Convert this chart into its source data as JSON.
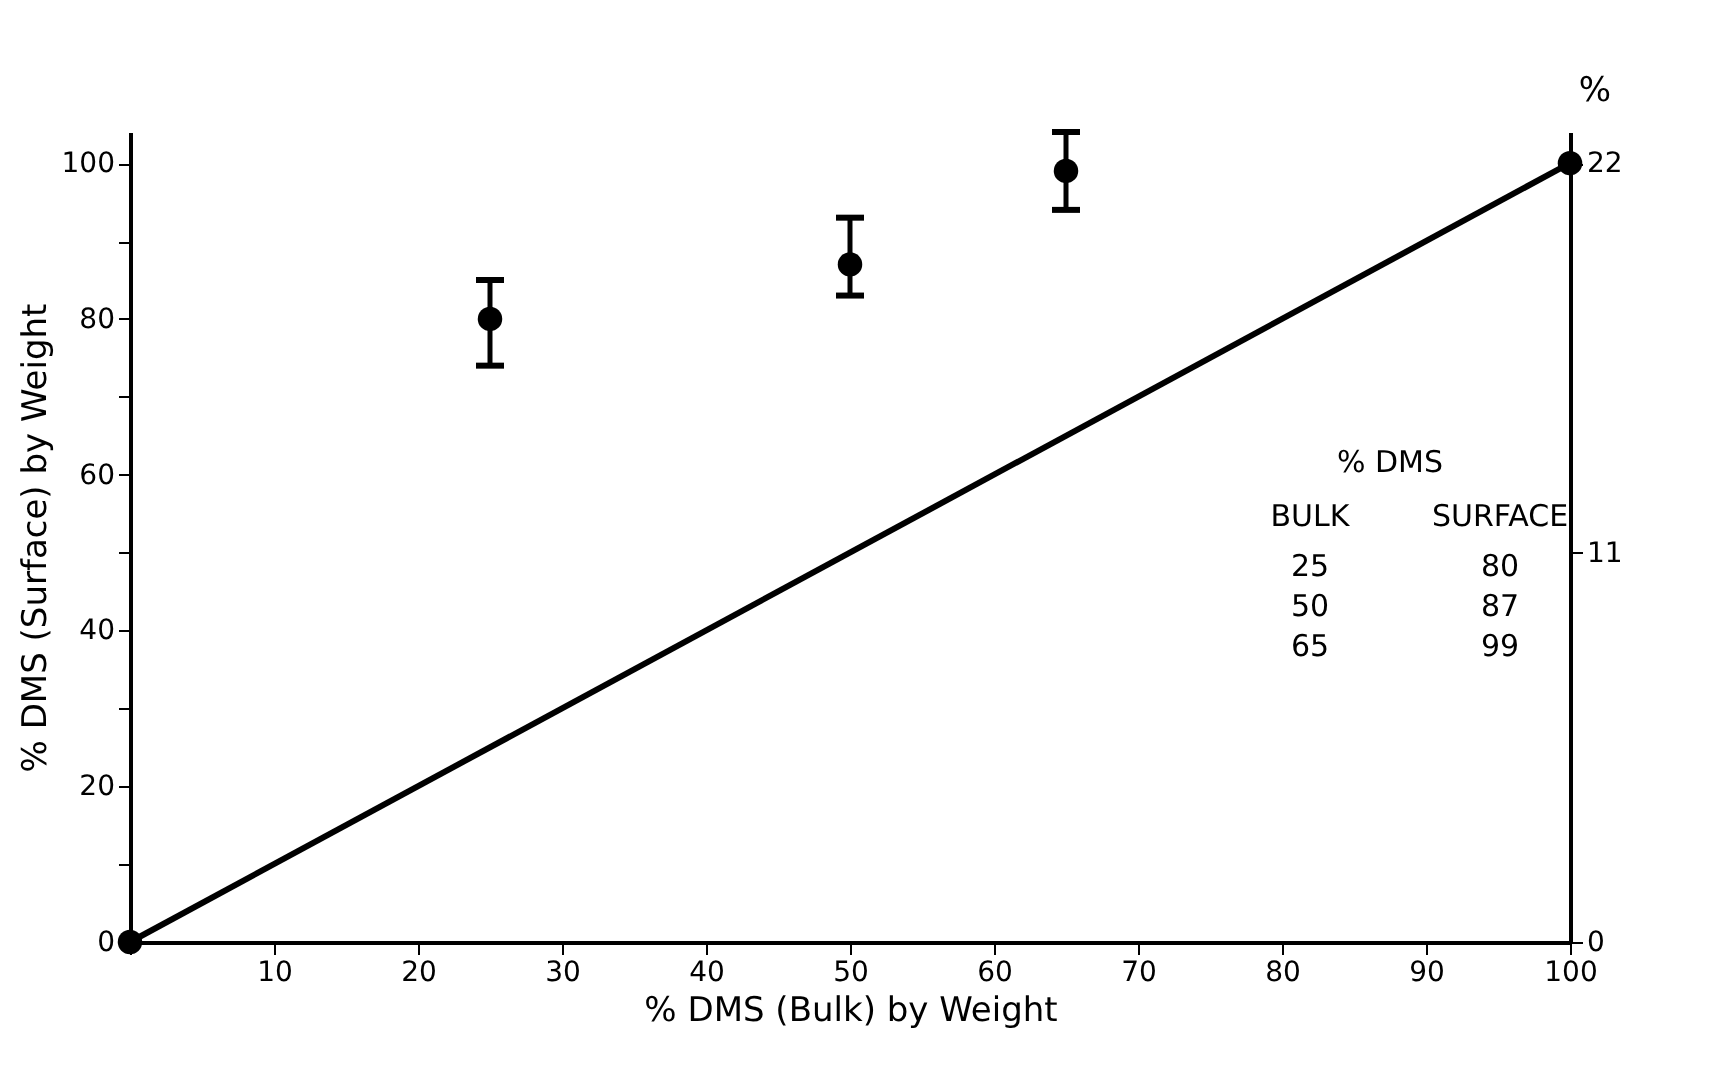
{
  "chart_data": {
    "type": "scatter",
    "xlabel": "% DMS (Bulk) by Weight",
    "ylabel": "% DMS (Surface) by Weight",
    "y2label": "%",
    "xlim": [
      0,
      100
    ],
    "xticks": [
      {
        "value": 0,
        "label": null
      },
      10,
      20,
      30,
      40,
      50,
      60,
      70,
      80,
      90,
      100
    ],
    "ylim": [
      0,
      104
    ],
    "yticks": [
      0,
      {
        "value": 10,
        "label": null
      },
      20,
      {
        "value": 30,
        "label": null
      },
      40,
      {
        "value": 50,
        "label": null
      },
      60,
      {
        "value": 70,
        "label": null
      },
      80,
      {
        "value": 90,
        "label": null
      },
      100
    ],
    "y2lim": [
      0,
      22.88
    ],
    "y2ticks": [
      0,
      11,
      22
    ],
    "series": [
      {
        "color": "#000000",
        "marker": "circle",
        "x": [
          25,
          50,
          65
        ],
        "values": [
          80,
          87,
          99
        ],
        "errors": [
          [
            74,
            85
          ],
          [
            83,
            93
          ],
          [
            94,
            104
          ]
        ]
      },
      {
        "type": "line",
        "color": "#000000",
        "marker": "circle",
        "line_style": "solid",
        "x": [
          0,
          100
        ],
        "values": [
          0,
          100
        ]
      }
    ],
    "annotations": [
      "% DMS",
      "BULK",
      "SURFACE",
      "25",
      "80",
      "50",
      "87",
      "65",
      "99"
    ],
    "grid": false
  }
}
